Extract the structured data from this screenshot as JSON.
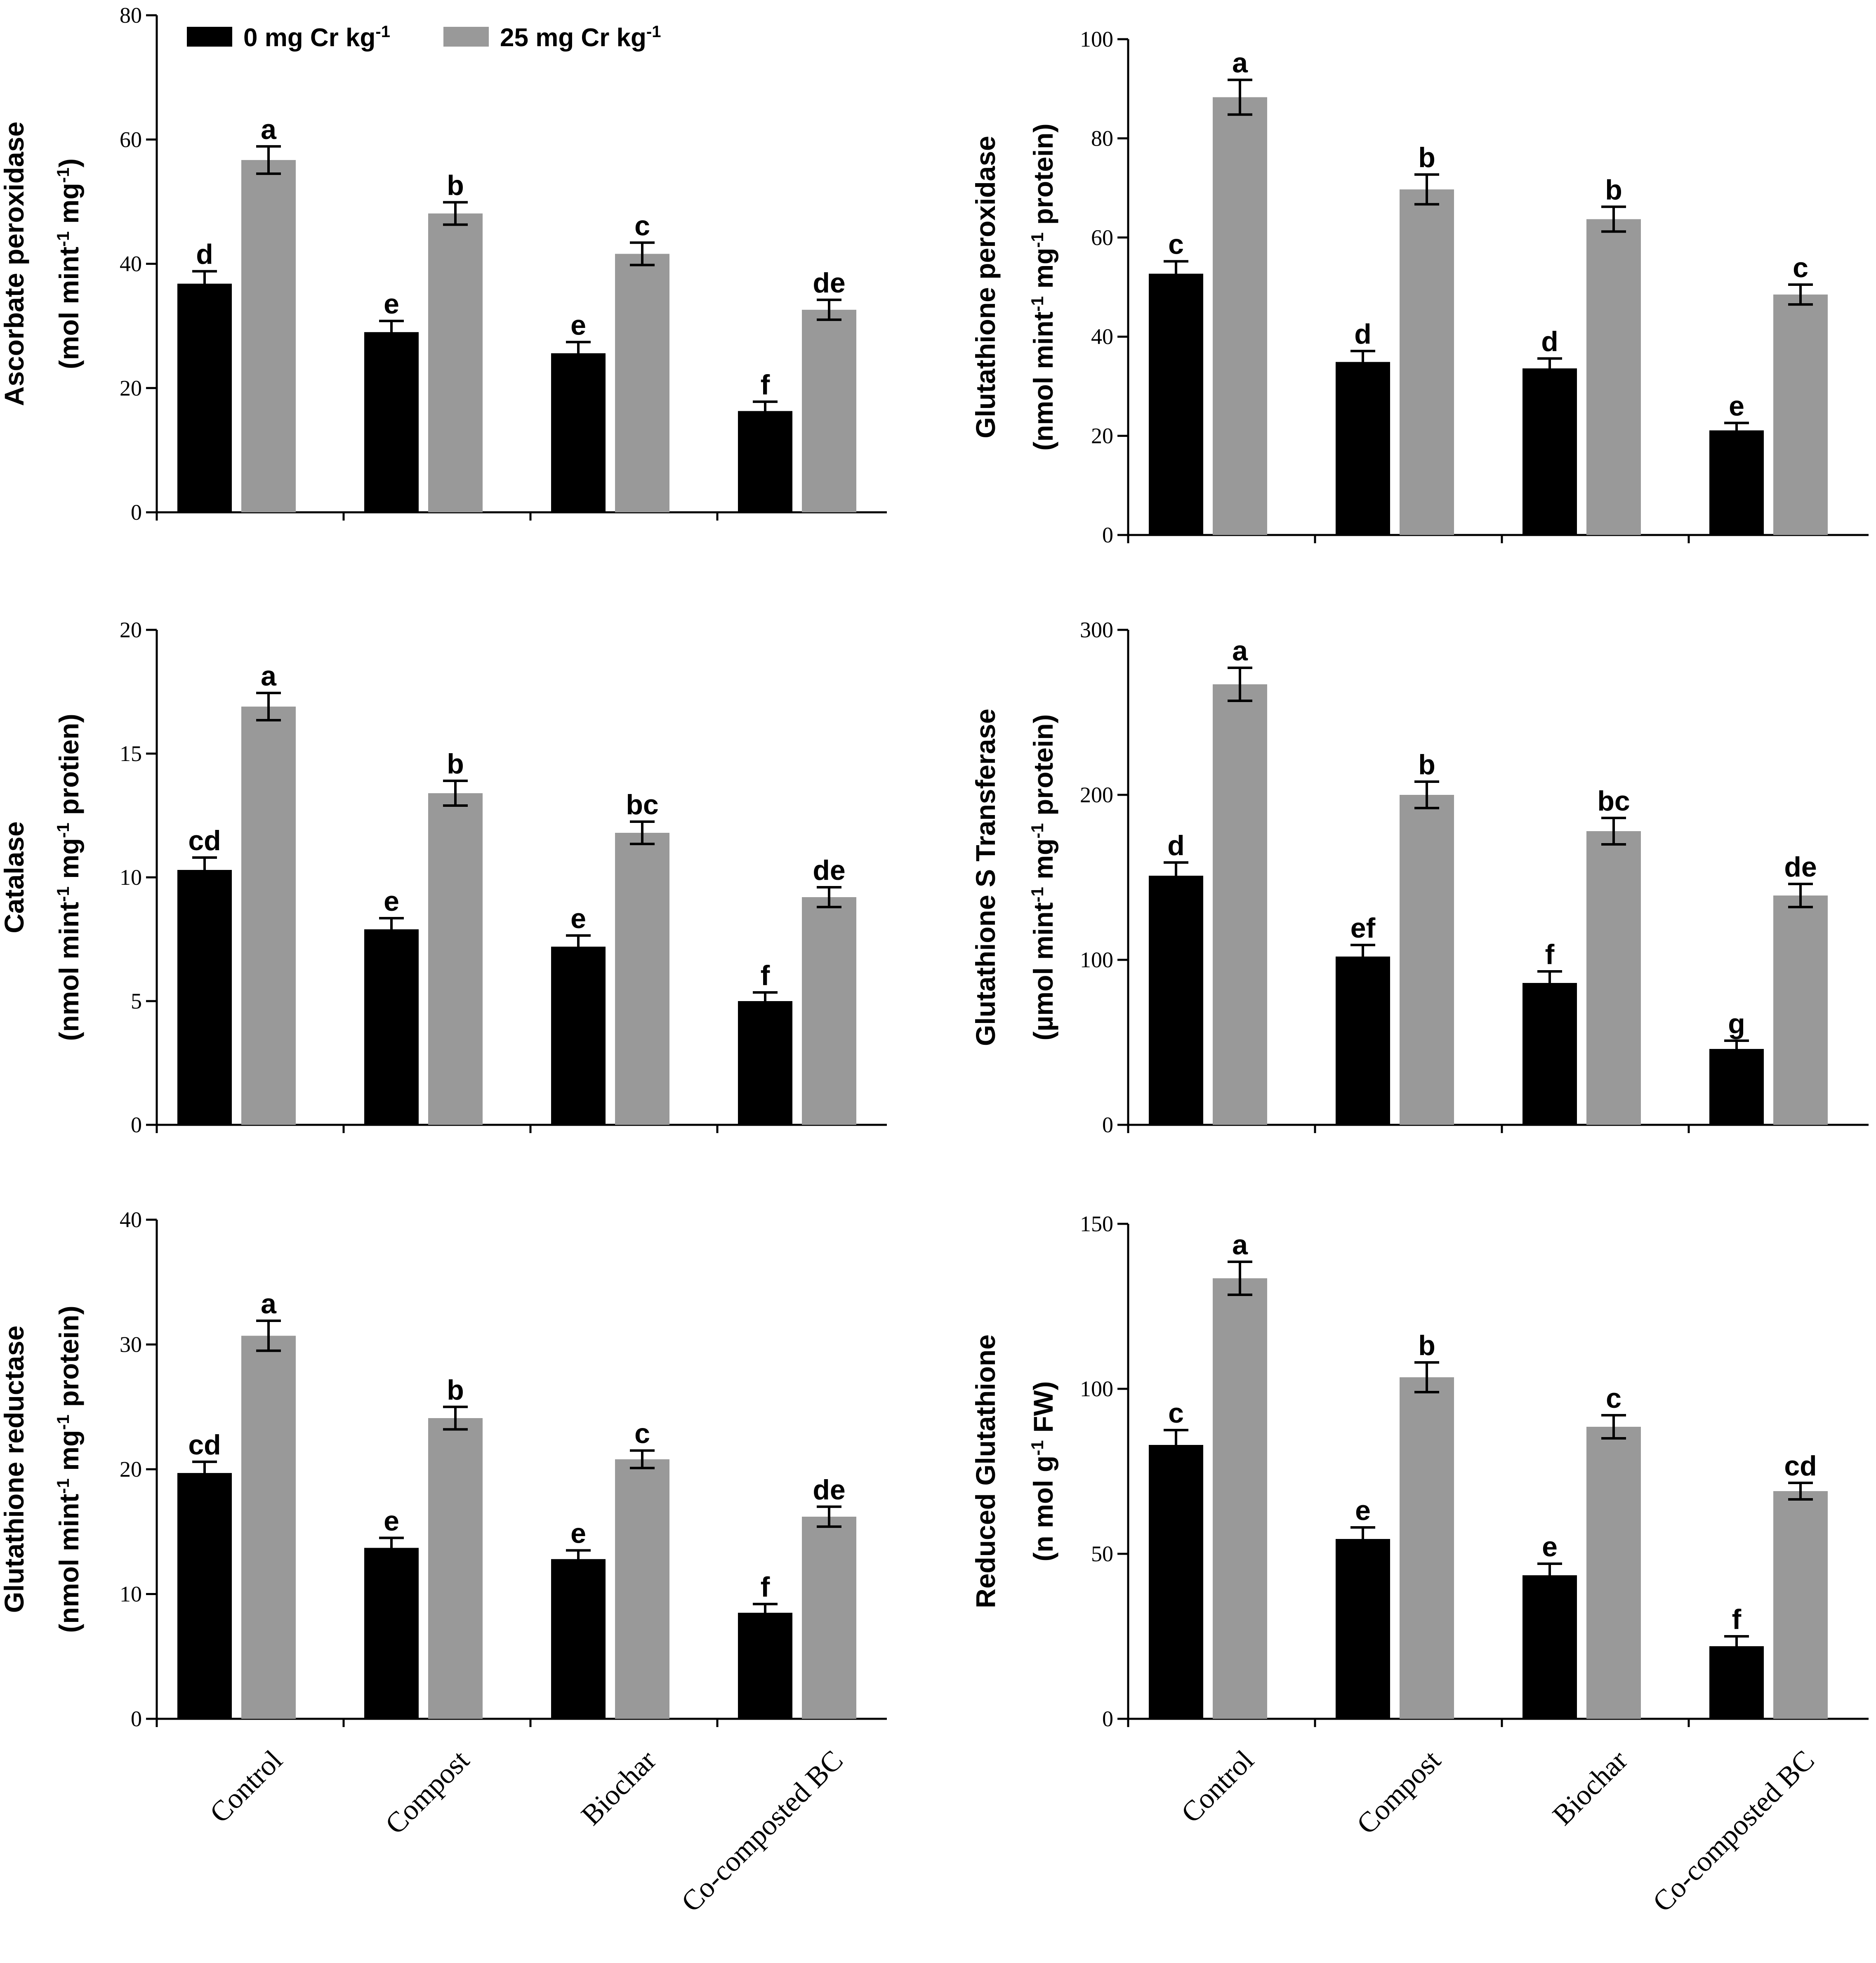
{
  "legend": {
    "items": [
      {
        "prefix": "0 mg Cr kg",
        "sup": "-1",
        "color": "#000000"
      },
      {
        "prefix": "25 mg Cr kg",
        "sup": "-1",
        "color": "#999999"
      }
    ]
  },
  "categories": [
    "Control",
    "Compost",
    "Biochar",
    "Co-composted BC"
  ],
  "series_colors": [
    "#000000",
    "#999999"
  ],
  "chart_data": [
    {
      "type": "bar",
      "ylabel_line1": "Ascorbate peroxidase",
      "ylabel_line2_parts": [
        {
          "t": "(mol mint"
        },
        {
          "sup": "-1"
        },
        {
          "t": " mg"
        },
        {
          "sup": "-1"
        },
        {
          "t": ")"
        }
      ],
      "ylim": [
        0,
        80
      ],
      "yticks": [
        0,
        20,
        40,
        60,
        80
      ],
      "categories": [
        "Control",
        "Compost",
        "Biochar",
        "Co-composted BC"
      ],
      "series": [
        {
          "name": "0 mg Cr kg-1",
          "values": [
            36.8,
            29,
            25.6,
            16.3
          ],
          "errors": [
            2,
            1.8,
            1.8,
            1.5
          ],
          "labels": [
            "d",
            "e",
            "e",
            "f"
          ]
        },
        {
          "name": "25 mg Cr kg-1",
          "values": [
            56.7,
            48.1,
            41.6,
            32.6
          ],
          "errors": [
            2.2,
            1.8,
            1.8,
            1.6
          ],
          "labels": [
            "a",
            "b",
            "c",
            "de"
          ]
        }
      ]
    },
    {
      "type": "bar",
      "ylabel_line1": "Glutathione peroxidase",
      "ylabel_line2_parts": [
        {
          "t": "(nmol mint"
        },
        {
          "sup": "-1"
        },
        {
          "t": " mg"
        },
        {
          "sup": "-1"
        },
        {
          "t": " protein)"
        }
      ],
      "ylim": [
        0,
        100
      ],
      "yticks": [
        0,
        20,
        40,
        60,
        80,
        100
      ],
      "categories": [
        "Control",
        "Compost",
        "Biochar",
        "Co-composted BC"
      ],
      "series": [
        {
          "name": "0 mg Cr kg-1",
          "values": [
            52.7,
            34.9,
            33.6,
            21.1
          ],
          "errors": [
            2.5,
            2.2,
            2,
            1.5
          ],
          "labels": [
            "c",
            "d",
            "d",
            "e"
          ]
        },
        {
          "name": "25 mg Cr kg-1",
          "values": [
            88.3,
            69.7,
            63.7,
            48.5
          ],
          "errors": [
            3.5,
            3,
            2.5,
            2
          ],
          "labels": [
            "a",
            "b",
            "b",
            "c"
          ]
        }
      ]
    },
    {
      "type": "bar",
      "ylabel_line1": "Catalase",
      "ylabel_line2_parts": [
        {
          "t": "(nmol mint"
        },
        {
          "sup": "-1"
        },
        {
          "t": " mg"
        },
        {
          "sup": "-1"
        },
        {
          "t": " protien)"
        }
      ],
      "ylim": [
        0,
        20
      ],
      "yticks": [
        0,
        5,
        10,
        15,
        20
      ],
      "categories": [
        "Control",
        "Compost",
        "Biochar",
        "Co-composted BC"
      ],
      "series": [
        {
          "name": "0 mg Cr kg-1",
          "values": [
            10.3,
            7.9,
            7.2,
            5.0
          ],
          "errors": [
            0.5,
            0.45,
            0.45,
            0.35
          ],
          "labels": [
            "cd",
            "e",
            "e",
            "f"
          ]
        },
        {
          "name": "25 mg Cr kg-1",
          "values": [
            16.9,
            13.4,
            11.8,
            9.2
          ],
          "errors": [
            0.55,
            0.5,
            0.45,
            0.4
          ],
          "labels": [
            "a",
            "b",
            "bc",
            "de"
          ]
        }
      ]
    },
    {
      "type": "bar",
      "ylabel_line1": "Glutathione S Transferase",
      "ylabel_line2_parts": [
        {
          "t": "(µmol mint"
        },
        {
          "sup": "-1"
        },
        {
          "t": " mg"
        },
        {
          "sup": "-1"
        },
        {
          "t": " protein)"
        }
      ],
      "ylim": [
        0,
        300
      ],
      "yticks": [
        0,
        100,
        200,
        300
      ],
      "categories": [
        "Control",
        "Compost",
        "Biochar",
        "Co-composted BC"
      ],
      "series": [
        {
          "name": "0 mg Cr kg-1",
          "values": [
            151,
            102,
            86,
            46
          ],
          "errors": [
            8,
            7,
            7,
            5
          ],
          "labels": [
            "d",
            "ef",
            "f",
            "g"
          ]
        },
        {
          "name": "25 mg Cr kg-1",
          "values": [
            267,
            200,
            178,
            139
          ],
          "errors": [
            10,
            8,
            8,
            7
          ],
          "labels": [
            "a",
            "b",
            "bc",
            "de"
          ]
        }
      ]
    },
    {
      "type": "bar",
      "ylabel_line1": "Glutathione reductase",
      "ylabel_line2_parts": [
        {
          "t": "(nmol mint"
        },
        {
          "sup": "-1"
        },
        {
          "t": " mg"
        },
        {
          "sup": "-1"
        },
        {
          "t": " protein)"
        }
      ],
      "ylim": [
        0,
        40
      ],
      "yticks": [
        0,
        10,
        20,
        30,
        40
      ],
      "categories": [
        "Control",
        "Compost",
        "Biochar",
        "Co-composted BC"
      ],
      "series": [
        {
          "name": "0 mg Cr kg-1",
          "values": [
            19.7,
            13.7,
            12.8,
            8.5
          ],
          "errors": [
            0.9,
            0.8,
            0.7,
            0.7
          ],
          "labels": [
            "cd",
            "e",
            "e",
            "f"
          ]
        },
        {
          "name": "25 mg Cr kg-1",
          "values": [
            30.7,
            24.1,
            20.8,
            16.2
          ],
          "errors": [
            1.2,
            0.9,
            0.7,
            0.8
          ],
          "labels": [
            "a",
            "b",
            "c",
            "de"
          ]
        }
      ]
    },
    {
      "type": "bar",
      "ylabel_line1": "Reduced Glutathione",
      "ylabel_line2_parts": [
        {
          "t": "(n mol g"
        },
        {
          "sup": "-1"
        },
        {
          "t": " FW)"
        }
      ],
      "ylim": [
        0,
        150
      ],
      "yticks": [
        0,
        50,
        100,
        150
      ],
      "categories": [
        "Control",
        "Compost",
        "Biochar",
        "Co-composted BC"
      ],
      "series": [
        {
          "name": "0 mg Cr kg-1",
          "values": [
            83,
            54.5,
            43.5,
            22
          ],
          "errors": [
            4.5,
            3.5,
            3.5,
            3
          ],
          "labels": [
            "c",
            "e",
            "e",
            "f"
          ]
        },
        {
          "name": "25 mg Cr kg-1",
          "values": [
            133.5,
            103.5,
            88.5,
            69
          ],
          "errors": [
            5,
            4.5,
            3.5,
            2.5
          ],
          "labels": [
            "a",
            "b",
            "c",
            "cd"
          ]
        }
      ]
    }
  ]
}
